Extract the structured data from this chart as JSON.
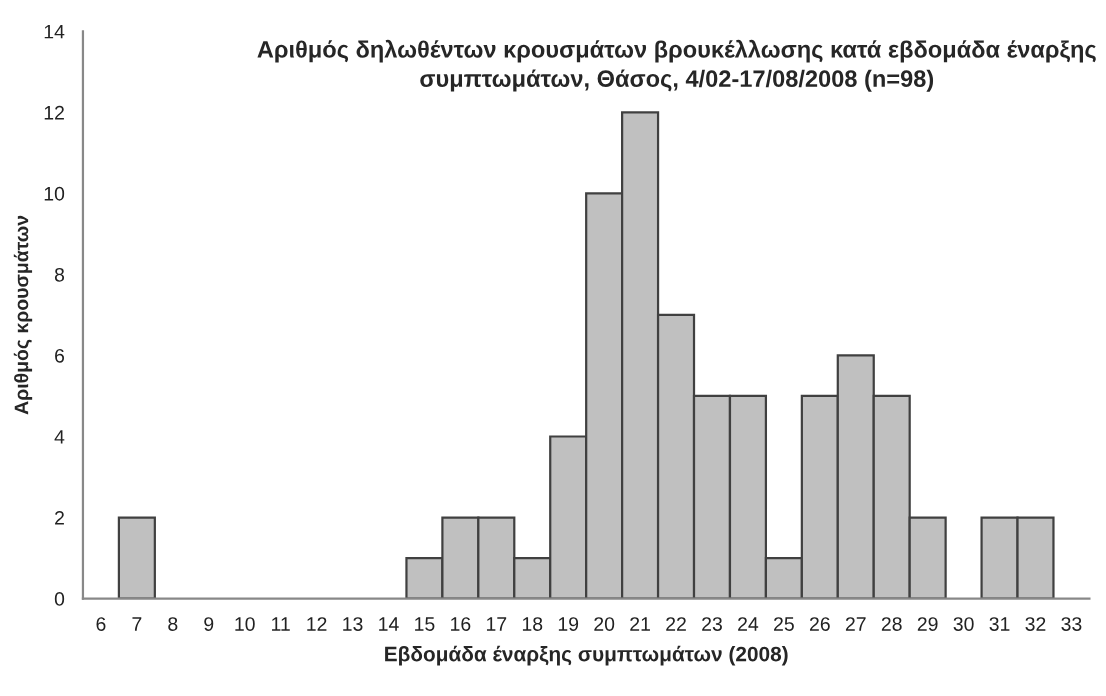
{
  "chart_data": {
    "type": "bar",
    "title": "Αριθμός δηλωθέντων κρουσμάτων βρουκέλλωσης κατά εβδομάδα έναρξης\nσυμπτωμάτων, Θάσος, 4/02-17/08/2008 (n=98)",
    "xlabel": "Εβδομάδα έναρξης συμπτωμάτων (2008)",
    "ylabel": "Αριθμός κρουσμάτων",
    "categories": [
      "6",
      "7",
      "8",
      "9",
      "10",
      "11",
      "12",
      "13",
      "14",
      "15",
      "16",
      "17",
      "18",
      "19",
      "20",
      "21",
      "22",
      "23",
      "24",
      "25",
      "26",
      "27",
      "28",
      "29",
      "30",
      "31",
      "32",
      "33"
    ],
    "values": [
      0,
      2,
      0,
      0,
      0,
      0,
      0,
      0,
      0,
      1,
      2,
      2,
      1,
      4,
      10,
      12,
      7,
      5,
      5,
      1,
      5,
      6,
      5,
      2,
      0,
      2,
      2,
      0
    ],
    "color": "#c0c0c0",
    "ylim": [
      0,
      14
    ],
    "yticks": [
      0,
      2,
      4,
      6,
      8,
      10,
      12,
      14
    ],
    "grid": false,
    "legend": false
  }
}
